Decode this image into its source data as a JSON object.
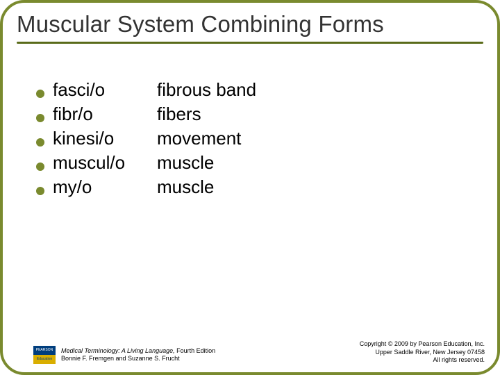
{
  "colors": {
    "border": "#7a8a2e",
    "title_text": "#333333",
    "title_line": "#5a6b1a",
    "bullet": "#7a8a2e",
    "body_text": "#000000",
    "footer_text": "#000000"
  },
  "title": "Muscular System Combining Forms",
  "list": [
    {
      "term": "fasci/o",
      "def": "fibrous band"
    },
    {
      "term": "fibr/o",
      "def": "fibers"
    },
    {
      "term": "kinesi/o",
      "def": "movement"
    },
    {
      "term": "muscul/o",
      "def": "muscle"
    },
    {
      "term": "my/o",
      "def": "muscle"
    }
  ],
  "footer": {
    "book_title": "Medical Terminology: A Living Language, ",
    "book_edition": "Fourth Edition",
    "authors": "Bonnie F. Fremgen and Suzanne S. Frucht",
    "copyright_line1": "Copyright © 2009 by Pearson Education, Inc.",
    "copyright_line2": "Upper Saddle River, New Jersey 07458",
    "copyright_line3": "All rights reserved.",
    "logo_top": "PEARSON",
    "logo_bottom": "Education"
  },
  "typography": {
    "title_fontsize": 33,
    "body_fontsize": 26,
    "footer_fontsize": 9
  }
}
